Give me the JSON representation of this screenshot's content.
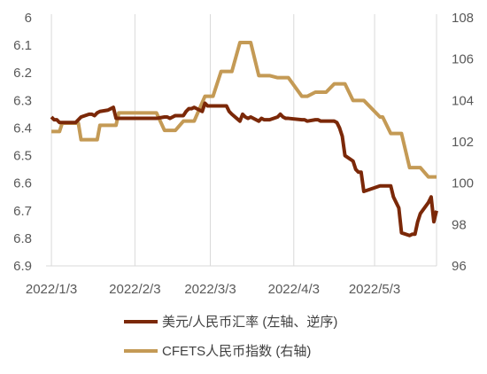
{
  "chart_data": {
    "type": "line",
    "title": "",
    "x_ticks": [
      "2022/1/3",
      "2022/2/3",
      "2022/3/3",
      "2022/4/3",
      "2022/5/3"
    ],
    "x_range": [
      "2022/1/1",
      "2022/5/26"
    ],
    "left_axis": {
      "min": 6.0,
      "max": 6.9,
      "step": 0.1,
      "inverted": true,
      "ticks": [
        "6",
        "6.1",
        "6.2",
        "6.3",
        "6.4",
        "6.5",
        "6.6",
        "6.7",
        "6.8",
        "6.9"
      ]
    },
    "right_axis": {
      "min": 96,
      "max": 108,
      "step": 2,
      "ticks": [
        "108",
        "106",
        "104",
        "102",
        "100",
        "98",
        "96"
      ]
    },
    "grid": "vertical",
    "legend_position": "bottom",
    "series": [
      {
        "name": "美元/人民币汇率 (左轴、逆序)",
        "axis": "left",
        "color": "#7b2808",
        "points": [
          [
            "2022-01-03",
            6.36
          ],
          [
            "2022-01-04",
            6.37
          ],
          [
            "2022-01-05",
            6.37
          ],
          [
            "2022-01-06",
            6.38
          ],
          [
            "2022-01-07",
            6.38
          ],
          [
            "2022-01-10",
            6.38
          ],
          [
            "2022-01-11",
            6.38
          ],
          [
            "2022-01-12",
            6.38
          ],
          [
            "2022-01-13",
            6.37
          ],
          [
            "2022-01-14",
            6.36
          ],
          [
            "2022-01-17",
            6.35
          ],
          [
            "2022-01-18",
            6.35
          ],
          [
            "2022-01-19",
            6.355
          ],
          [
            "2022-01-20",
            6.345
          ],
          [
            "2022-01-21",
            6.34
          ],
          [
            "2022-01-24",
            6.335
          ],
          [
            "2022-01-25",
            6.33
          ],
          [
            "2022-01-26",
            6.325
          ],
          [
            "2022-01-27",
            6.365
          ],
          [
            "2022-02-07",
            6.365
          ],
          [
            "2022-02-08",
            6.365
          ],
          [
            "2022-02-09",
            6.365
          ],
          [
            "2022-02-10",
            6.365
          ],
          [
            "2022-02-11",
            6.365
          ],
          [
            "2022-02-14",
            6.36
          ],
          [
            "2022-02-15",
            6.36
          ],
          [
            "2022-02-16",
            6.365
          ],
          [
            "2022-02-17",
            6.36
          ],
          [
            "2022-02-18",
            6.355
          ],
          [
            "2022-02-21",
            6.355
          ],
          [
            "2022-02-22",
            6.34
          ],
          [
            "2022-02-23",
            6.33
          ],
          [
            "2022-02-24",
            6.33
          ],
          [
            "2022-02-25",
            6.325
          ],
          [
            "2022-02-28",
            6.34
          ],
          [
            "2022-03-01",
            6.31
          ],
          [
            "2022-03-02",
            6.32
          ],
          [
            "2022-03-03",
            6.32
          ],
          [
            "2022-03-04",
            6.32
          ],
          [
            "2022-03-07",
            6.32
          ],
          [
            "2022-03-08",
            6.32
          ],
          [
            "2022-03-09",
            6.32
          ],
          [
            "2022-03-10",
            6.34
          ],
          [
            "2022-03-11",
            6.35
          ],
          [
            "2022-03-14",
            6.375
          ],
          [
            "2022-03-15",
            6.35
          ],
          [
            "2022-03-16",
            6.36
          ],
          [
            "2022-03-17",
            6.365
          ],
          [
            "2022-03-18",
            6.36
          ],
          [
            "2022-03-21",
            6.375
          ],
          [
            "2022-03-22",
            6.365
          ],
          [
            "2022-03-23",
            6.37
          ],
          [
            "2022-03-24",
            6.37
          ],
          [
            "2022-03-25",
            6.37
          ],
          [
            "2022-03-28",
            6.36
          ],
          [
            "2022-03-29",
            6.35
          ],
          [
            "2022-03-30",
            6.36
          ],
          [
            "2022-03-31",
            6.365
          ],
          [
            "2022-04-01",
            6.365
          ],
          [
            "2022-04-06",
            6.37
          ],
          [
            "2022-04-07",
            6.37
          ],
          [
            "2022-04-08",
            6.375
          ],
          [
            "2022-04-11",
            6.37
          ],
          [
            "2022-04-12",
            6.37
          ],
          [
            "2022-04-13",
            6.375
          ],
          [
            "2022-04-14",
            6.375
          ],
          [
            "2022-04-15",
            6.375
          ],
          [
            "2022-04-18",
            6.375
          ],
          [
            "2022-04-19",
            6.38
          ],
          [
            "2022-04-20",
            6.4
          ],
          [
            "2022-04-21",
            6.43
          ],
          [
            "2022-04-22",
            6.5
          ],
          [
            "2022-04-25",
            6.52
          ],
          [
            "2022-04-26",
            6.55
          ],
          [
            "2022-04-27",
            6.56
          ],
          [
            "2022-04-28",
            6.56
          ],
          [
            "2022-04-29",
            6.63
          ],
          [
            "2022-05-05",
            6.61
          ],
          [
            "2022-05-06",
            6.61
          ],
          [
            "2022-05-09",
            6.61
          ],
          [
            "2022-05-10",
            6.65
          ],
          [
            "2022-05-11",
            6.67
          ],
          [
            "2022-05-12",
            6.69
          ],
          [
            "2022-05-13",
            6.78
          ],
          [
            "2022-05-16",
            6.79
          ],
          [
            "2022-05-17",
            6.785
          ],
          [
            "2022-05-18",
            6.785
          ],
          [
            "2022-05-19",
            6.74
          ],
          [
            "2022-05-20",
            6.71
          ],
          [
            "2022-05-23",
            6.67
          ],
          [
            "2022-05-24",
            6.65
          ],
          [
            "2022-05-25",
            6.74
          ],
          [
            "2022-05-26",
            6.7
          ]
        ]
      },
      {
        "name": "CFETS人民币指数 (右轴)",
        "axis": "right",
        "color": "#c49a55",
        "points": [
          [
            "2022-01-03",
            102.5
          ],
          [
            "2022-01-06",
            102.5
          ],
          [
            "2022-01-07",
            102.9
          ],
          [
            "2022-01-13",
            102.9
          ],
          [
            "2022-01-14",
            102.1
          ],
          [
            "2022-01-20",
            102.1
          ],
          [
            "2022-01-21",
            102.8
          ],
          [
            "2022-01-27",
            102.8
          ],
          [
            "2022-01-28",
            103.4
          ],
          [
            "2022-02-11",
            103.4
          ],
          [
            "2022-02-14",
            102.55
          ],
          [
            "2022-02-18",
            102.55
          ],
          [
            "2022-02-21",
            103.0
          ],
          [
            "2022-02-25",
            103.0
          ],
          [
            "2022-02-28",
            103.9
          ],
          [
            "2022-03-01",
            104.2
          ],
          [
            "2022-03-04",
            104.2
          ],
          [
            "2022-03-07",
            105.4
          ],
          [
            "2022-03-11",
            105.4
          ],
          [
            "2022-03-14",
            106.8
          ],
          [
            "2022-03-18",
            106.8
          ],
          [
            "2022-03-21",
            105.2
          ],
          [
            "2022-03-25",
            105.2
          ],
          [
            "2022-03-28",
            105.1
          ],
          [
            "2022-04-01",
            105.1
          ],
          [
            "2022-04-06",
            104.2
          ],
          [
            "2022-04-08",
            104.2
          ],
          [
            "2022-04-11",
            104.4
          ],
          [
            "2022-04-15",
            104.4
          ],
          [
            "2022-04-18",
            104.8
          ],
          [
            "2022-04-22",
            104.8
          ],
          [
            "2022-04-25",
            104.0
          ],
          [
            "2022-04-29",
            104.0
          ],
          [
            "2022-05-05",
            103.2
          ],
          [
            "2022-05-06",
            103.2
          ],
          [
            "2022-05-09",
            102.4
          ],
          [
            "2022-05-13",
            102.4
          ],
          [
            "2022-05-16",
            100.75
          ],
          [
            "2022-05-20",
            100.75
          ],
          [
            "2022-05-23",
            100.3
          ],
          [
            "2022-05-26",
            100.3
          ]
        ]
      }
    ]
  }
}
